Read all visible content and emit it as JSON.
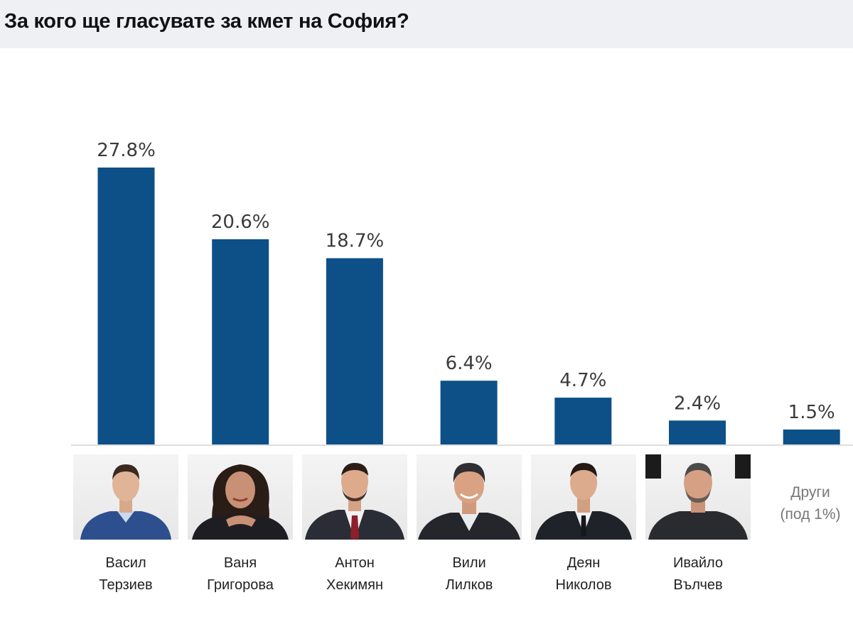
{
  "header": {
    "title": "За кого ще гласувате за кмет на София?"
  },
  "colors": {
    "bar": "#0d5088",
    "header_background": "#eef0f4"
  },
  "chart_data": {
    "type": "bar",
    "title": "За кого ще гласувате за кмет на София?",
    "categories": [
      [
        "Васил",
        "Терзиев"
      ],
      [
        "Ваня",
        "Григорова"
      ],
      [
        "Антон",
        "Хекимян"
      ],
      [
        "Вили",
        "Лилков"
      ],
      [
        "Деян",
        "Николов"
      ],
      [
        "Ивайло",
        "Вълчев"
      ],
      [
        "Други",
        "(под 1%)"
      ]
    ],
    "values": [
      27.8,
      20.6,
      18.7,
      6.4,
      4.7,
      2.4,
      1.5
    ],
    "value_labels": [
      "27.8%",
      "20.6%",
      "18.7%",
      "6.4%",
      "4.7%",
      "2.4%",
      "1.5%"
    ],
    "unit": "%",
    "xlabel": "",
    "ylabel": "",
    "grid": false,
    "legend": "none"
  }
}
